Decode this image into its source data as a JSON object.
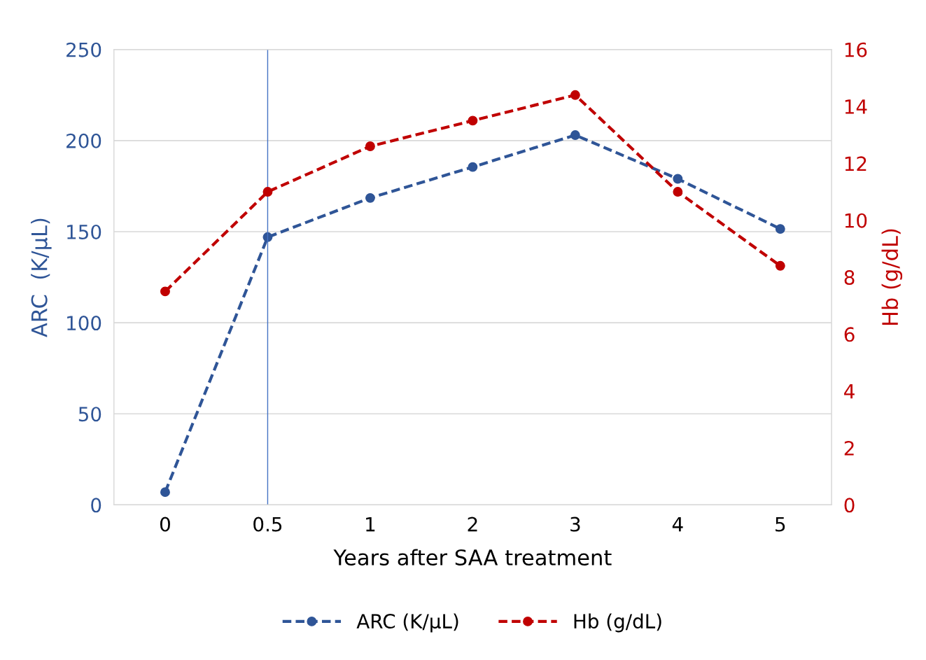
{
  "chart_data": {
    "type": "line",
    "xlabel": "Years after SAA treatment",
    "ylabel": "ARC  (K/µL)",
    "y2label": "Hb (g/dL)",
    "categories": [
      "0",
      "0.5",
      "1",
      "2",
      "3",
      "4",
      "5"
    ],
    "series": [
      {
        "name": "ARC (K/µL)",
        "color": "#2f5597",
        "values": [
          7,
          147,
          168.5,
          185.5,
          203,
          179,
          151.5
        ]
      },
      {
        "name": "Hb (g/dL)",
        "color": "#c00000",
        "axis": "y2",
        "values": [
          7.5,
          11.0,
          12.6,
          13.5,
          14.4,
          11.0,
          8.4
        ]
      }
    ],
    "ylim": [
      0,
      250
    ],
    "yticks": [
      0,
      50,
      100,
      150,
      200,
      250
    ],
    "y2lim": [
      0,
      16
    ],
    "y2ticks": [
      0,
      2,
      4,
      6,
      8,
      10,
      12,
      14,
      16
    ],
    "ref_lines": [
      {
        "axis": "x",
        "value": "0.5",
        "color": "#4472c4"
      }
    ],
    "grid": "y",
    "legend": "bottom",
    "marker": "circle",
    "line_style": "dashed"
  }
}
